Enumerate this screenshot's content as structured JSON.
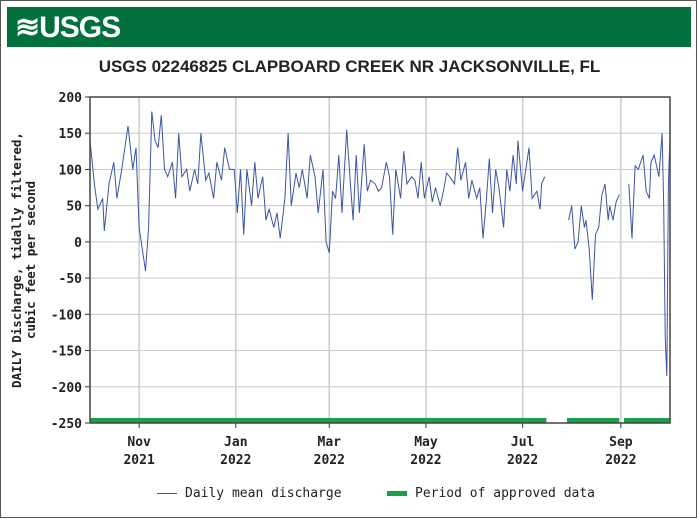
{
  "header": {
    "logo_text": "USGS"
  },
  "chart_data": {
    "type": "line",
    "title": "USGS 02246825 CLAPBOARD CREEK NR JACKSONVILLE, FL",
    "ylabel_lines": [
      "DAILY Discharge, tidally filtered,",
      "cubic feet per second"
    ],
    "ylim": [
      -250,
      200
    ],
    "yticks": [
      200,
      150,
      100,
      50,
      0,
      -50,
      -100,
      -150,
      -200,
      -250
    ],
    "xlim": [
      "2021-10-01",
      "2022-10-02"
    ],
    "xticks": [
      {
        "date": "2021-11-01",
        "month": "Nov",
        "year": "2021"
      },
      {
        "date": "2022-01-01",
        "month": "Jan",
        "year": "2022"
      },
      {
        "date": "2022-03-01",
        "month": "Mar",
        "year": "2022"
      },
      {
        "date": "2022-05-01",
        "month": "May",
        "year": "2022"
      },
      {
        "date": "2022-07-01",
        "month": "Jul",
        "year": "2022"
      },
      {
        "date": "2022-09-01",
        "month": "Sep",
        "year": "2022"
      }
    ],
    "grid": true,
    "line_color": "#3a55a6",
    "approved_color": "#18a14b",
    "legend_placement": "bottom",
    "series": [
      {
        "name": "Daily mean discharge",
        "segments": [
          [
            [
              "2021-10-01",
              140
            ],
            [
              "2021-10-04",
              75
            ],
            [
              "2021-10-06",
              45
            ],
            [
              "2021-10-09",
              60
            ],
            [
              "2021-10-10",
              15
            ],
            [
              "2021-10-13",
              80
            ],
            [
              "2021-10-16",
              110
            ],
            [
              "2021-10-18",
              60
            ],
            [
              "2021-10-21",
              100
            ],
            [
              "2021-10-23",
              130
            ],
            [
              "2021-10-25",
              160
            ],
            [
              "2021-10-28",
              100
            ],
            [
              "2021-10-30",
              130
            ],
            [
              "2021-11-01",
              20
            ],
            [
              "2021-11-03",
              -10
            ],
            [
              "2021-11-05",
              -40
            ],
            [
              "2021-11-07",
              20
            ],
            [
              "2021-11-09",
              180
            ],
            [
              "2021-11-11",
              140
            ],
            [
              "2021-11-13",
              130
            ],
            [
              "2021-11-15",
              175
            ],
            [
              "2021-11-17",
              100
            ],
            [
              "2021-11-19",
              90
            ],
            [
              "2021-11-22",
              110
            ],
            [
              "2021-11-24",
              60
            ],
            [
              "2021-11-26",
              150
            ],
            [
              "2021-11-28",
              90
            ],
            [
              "2021-12-01",
              100
            ],
            [
              "2021-12-03",
              70
            ],
            [
              "2021-12-06",
              100
            ],
            [
              "2021-12-08",
              80
            ],
            [
              "2021-12-10",
              150
            ],
            [
              "2021-12-13",
              85
            ],
            [
              "2021-12-15",
              95
            ],
            [
              "2021-12-18",
              60
            ],
            [
              "2021-12-20",
              110
            ],
            [
              "2021-12-23",
              85
            ],
            [
              "2021-12-25",
              130
            ],
            [
              "2021-12-28",
              100
            ],
            [
              "2021-12-31",
              100
            ],
            [
              "2022-01-02",
              40
            ],
            [
              "2022-01-04",
              100
            ],
            [
              "2022-01-06",
              10
            ],
            [
              "2022-01-08",
              100
            ],
            [
              "2022-01-11",
              50
            ],
            [
              "2022-01-13",
              110
            ],
            [
              "2022-01-15",
              60
            ],
            [
              "2022-01-18",
              90
            ],
            [
              "2022-01-20",
              30
            ],
            [
              "2022-01-22",
              45
            ],
            [
              "2022-01-25",
              20
            ],
            [
              "2022-01-27",
              40
            ],
            [
              "2022-01-29",
              5
            ],
            [
              "2022-02-01",
              60
            ],
            [
              "2022-02-03",
              150
            ],
            [
              "2022-02-05",
              50
            ],
            [
              "2022-02-08",
              95
            ],
            [
              "2022-02-10",
              75
            ],
            [
              "2022-02-12",
              100
            ],
            [
              "2022-02-15",
              60
            ],
            [
              "2022-02-17",
              120
            ],
            [
              "2022-02-20",
              90
            ],
            [
              "2022-02-22",
              40
            ],
            [
              "2022-02-25",
              100
            ],
            [
              "2022-02-27",
              0
            ],
            [
              "2022-03-01",
              -15
            ],
            [
              "2022-03-03",
              70
            ],
            [
              "2022-03-05",
              60
            ],
            [
              "2022-03-07",
              120
            ],
            [
              "2022-03-09",
              40
            ],
            [
              "2022-03-12",
              155
            ],
            [
              "2022-03-14",
              90
            ],
            [
              "2022-03-16",
              30
            ],
            [
              "2022-03-18",
              120
            ],
            [
              "2022-03-20",
              40
            ],
            [
              "2022-03-23",
              135
            ],
            [
              "2022-03-25",
              70
            ],
            [
              "2022-03-27",
              85
            ],
            [
              "2022-03-30",
              80
            ],
            [
              "2022-04-01",
              70
            ],
            [
              "2022-04-03",
              75
            ],
            [
              "2022-04-06",
              110
            ],
            [
              "2022-04-08",
              90
            ],
            [
              "2022-04-10",
              10
            ],
            [
              "2022-04-12",
              100
            ],
            [
              "2022-04-15",
              60
            ],
            [
              "2022-04-17",
              125
            ],
            [
              "2022-04-19",
              80
            ],
            [
              "2022-04-22",
              90
            ],
            [
              "2022-04-24",
              85
            ],
            [
              "2022-04-26",
              60
            ],
            [
              "2022-04-28",
              110
            ],
            [
              "2022-04-30",
              60
            ],
            [
              "2022-05-03",
              90
            ],
            [
              "2022-05-05",
              55
            ],
            [
              "2022-05-07",
              75
            ],
            [
              "2022-05-10",
              50
            ],
            [
              "2022-05-12",
              70
            ],
            [
              "2022-05-14",
              95
            ],
            [
              "2022-05-16",
              90
            ],
            [
              "2022-05-19",
              80
            ],
            [
              "2022-05-21",
              130
            ],
            [
              "2022-05-23",
              85
            ],
            [
              "2022-05-26",
              110
            ],
            [
              "2022-05-28",
              60
            ],
            [
              "2022-05-30",
              85
            ],
            [
              "2022-06-02",
              60
            ],
            [
              "2022-06-04",
              75
            ],
            [
              "2022-06-06",
              5
            ],
            [
              "2022-06-08",
              55
            ],
            [
              "2022-06-10",
              115
            ],
            [
              "2022-06-12",
              40
            ],
            [
              "2022-06-14",
              100
            ],
            [
              "2022-06-16",
              75
            ],
            [
              "2022-06-19",
              20
            ],
            [
              "2022-06-21",
              100
            ],
            [
              "2022-06-23",
              70
            ],
            [
              "2022-06-25",
              120
            ],
            [
              "2022-06-27",
              80
            ],
            [
              "2022-06-28",
              140
            ],
            [
              "2022-07-01",
              70
            ],
            [
              "2022-07-03",
              100
            ],
            [
              "2022-07-05",
              130
            ],
            [
              "2022-07-07",
              60
            ],
            [
              "2022-07-10",
              70
            ],
            [
              "2022-07-12",
              45
            ],
            [
              "2022-07-13",
              80
            ],
            [
              "2022-07-15",
              90
            ]
          ],
          [
            [
              "2022-07-30",
              30
            ],
            [
              "2022-08-01",
              50
            ],
            [
              "2022-08-03",
              -10
            ],
            [
              "2022-08-05",
              0
            ],
            [
              "2022-08-07",
              50
            ],
            [
              "2022-08-09",
              20
            ],
            [
              "2022-08-10",
              30
            ],
            [
              "2022-08-12",
              -10
            ],
            [
              "2022-08-14",
              -80
            ],
            [
              "2022-08-16",
              10
            ],
            [
              "2022-08-18",
              20
            ],
            [
              "2022-08-20",
              65
            ],
            [
              "2022-08-22",
              80
            ],
            [
              "2022-08-24",
              30
            ],
            [
              "2022-08-25",
              50
            ],
            [
              "2022-08-27",
              30
            ],
            [
              "2022-08-29",
              55
            ],
            [
              "2022-08-31",
              65
            ]
          ],
          [
            [
              "2022-09-06",
              80
            ],
            [
              "2022-09-08",
              5
            ],
            [
              "2022-09-10",
              105
            ],
            [
              "2022-09-12",
              100
            ],
            [
              "2022-09-15",
              120
            ],
            [
              "2022-09-17",
              70
            ],
            [
              "2022-09-19",
              60
            ],
            [
              "2022-09-20",
              110
            ],
            [
              "2022-09-22",
              120
            ],
            [
              "2022-09-25",
              90
            ],
            [
              "2022-09-27",
              150
            ],
            [
              "2022-09-28",
              50
            ],
            [
              "2022-09-29",
              -130
            ],
            [
              "2022-09-30",
              -185
            ],
            [
              "2022-10-01",
              80
            ],
            [
              "2022-10-02",
              145
            ]
          ]
        ]
      }
    ],
    "approved_periods": [
      [
        "2021-10-01",
        "2022-07-16"
      ],
      [
        "2022-07-29",
        "2022-08-31"
      ],
      [
        "2022-09-03",
        "2022-10-02"
      ]
    ],
    "legend": {
      "line_label": "Daily mean discharge",
      "approved_label": "Period of approved data"
    }
  }
}
